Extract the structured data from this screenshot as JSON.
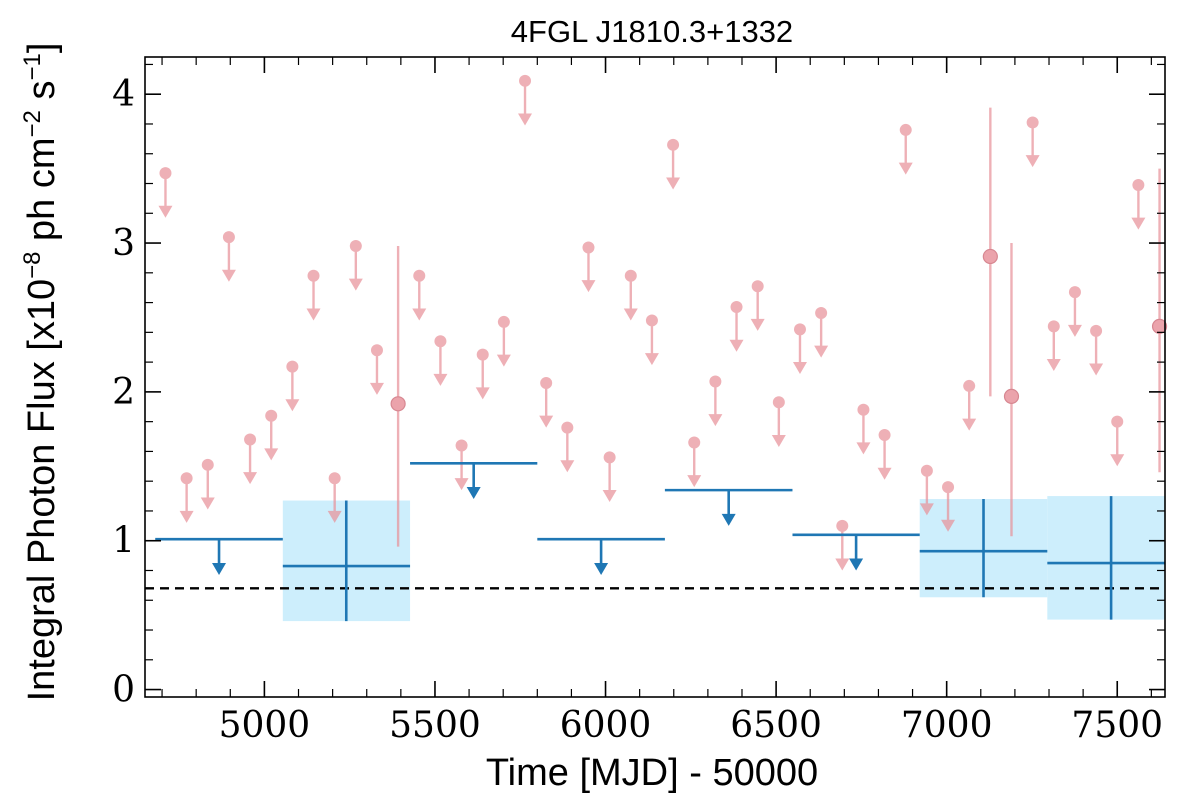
{
  "chart_data": {
    "type": "scatter",
    "title": "4FGL J1810.3+1332",
    "xlabel": "Time [MJD] - 50000",
    "ylabel": "Integral Photon Flux [x10$^{-8}$ ph cm$^{-2}$ s$^{-1}$]",
    "ylabel_parts": {
      "pre": "Integral Photon Flux [x10",
      "e1": "−8",
      "mid": " ph cm",
      "e2": "−2",
      "mid2": " s",
      "e3": "−1",
      "post": "]"
    },
    "xlim": [
      4650,
      7640
    ],
    "ylim": [
      -0.05,
      4.25
    ],
    "x_ticks": [
      5000,
      5500,
      6000,
      6500,
      7000,
      7500
    ],
    "x_tick_labels": [
      "5000",
      "5500",
      "6000",
      "6500",
      "7000",
      "7500"
    ],
    "y_ticks": [
      0,
      1,
      2,
      3,
      4
    ],
    "y_tick_labels": [
      "0",
      "1",
      "2",
      "3",
      "4"
    ],
    "grid": false,
    "colors": {
      "short_bins": "#e8939b",
      "long_bins": "#1f77b4",
      "long_bins_band": "#cdeefc",
      "reference_line": "#000000"
    },
    "reference_line": {
      "y": 0.68,
      "style": "dashed"
    },
    "short_bins": {
      "upper_limits": [
        {
          "x": 4710,
          "y": 3.47
        },
        {
          "x": 4772,
          "y": 1.42
        },
        {
          "x": 4834,
          "y": 1.51
        },
        {
          "x": 4896,
          "y": 3.04
        },
        {
          "x": 4958,
          "y": 1.68
        },
        {
          "x": 5020,
          "y": 1.84
        },
        {
          "x": 5082,
          "y": 2.17
        },
        {
          "x": 5144,
          "y": 2.78
        },
        {
          "x": 5206,
          "y": 1.42
        },
        {
          "x": 5268,
          "y": 2.98
        },
        {
          "x": 5330,
          "y": 2.28
        },
        {
          "x": 5454,
          "y": 2.78
        },
        {
          "x": 5516,
          "y": 2.34
        },
        {
          "x": 5578,
          "y": 1.64
        },
        {
          "x": 5640,
          "y": 2.25
        },
        {
          "x": 5702,
          "y": 2.47
        },
        {
          "x": 5764,
          "y": 4.09
        },
        {
          "x": 5826,
          "y": 2.06
        },
        {
          "x": 5888,
          "y": 1.76
        },
        {
          "x": 5950,
          "y": 2.97
        },
        {
          "x": 6012,
          "y": 1.56
        },
        {
          "x": 6074,
          "y": 2.78
        },
        {
          "x": 6136,
          "y": 2.48
        },
        {
          "x": 6198,
          "y": 3.66
        },
        {
          "x": 6260,
          "y": 1.66
        },
        {
          "x": 6322,
          "y": 2.07
        },
        {
          "x": 6384,
          "y": 2.57
        },
        {
          "x": 6446,
          "y": 2.71
        },
        {
          "x": 6508,
          "y": 1.93
        },
        {
          "x": 6570,
          "y": 2.42
        },
        {
          "x": 6632,
          "y": 2.53
        },
        {
          "x": 6694,
          "y": 1.1
        },
        {
          "x": 6756,
          "y": 1.88
        },
        {
          "x": 6818,
          "y": 1.71
        },
        {
          "x": 6880,
          "y": 3.76
        },
        {
          "x": 6942,
          "y": 1.47
        },
        {
          "x": 7004,
          "y": 1.36
        },
        {
          "x": 7066,
          "y": 2.04
        },
        {
          "x": 7252,
          "y": 3.81
        },
        {
          "x": 7314,
          "y": 2.44
        },
        {
          "x": 7376,
          "y": 2.67
        },
        {
          "x": 7438,
          "y": 2.41
        },
        {
          "x": 7500,
          "y": 1.8
        },
        {
          "x": 7562,
          "y": 3.39
        }
      ],
      "detections": [
        {
          "x": 5392,
          "y": 1.92,
          "y_low": 0.96,
          "y_high": 2.98
        },
        {
          "x": 7128,
          "y": 2.91,
          "y_low": 1.97,
          "y_high": 3.91
        },
        {
          "x": 7190,
          "y": 1.97,
          "y_low": 1.03,
          "y_high": 3.0
        },
        {
          "x": 7624,
          "y": 2.44,
          "y_low": 1.46,
          "y_high": 3.5
        }
      ]
    },
    "long_bins": {
      "upper_limits": [
        {
          "x_start": 4680,
          "x_end": 5054,
          "y": 1.01
        },
        {
          "x_start": 5800,
          "x_end": 6174,
          "y": 1.01
        },
        {
          "x_start": 5427,
          "x_end": 5800,
          "y": 1.52
        },
        {
          "x_start": 6174,
          "x_end": 6548,
          "y": 1.34
        },
        {
          "x_start": 6548,
          "x_end": 6921,
          "y": 1.04
        }
      ],
      "detections": [
        {
          "x_start": 5054,
          "x_end": 5427,
          "x": 5240,
          "y": 0.83,
          "y_low": 0.46,
          "y_high": 1.27
        },
        {
          "x_start": 6921,
          "x_end": 7295,
          "x": 7108,
          "y": 0.93,
          "y_low": 0.62,
          "y_high": 1.28
        },
        {
          "x_start": 7295,
          "x_end": 7669,
          "x": 7482,
          "y": 0.85,
          "y_low": 0.47,
          "y_high": 1.3
        }
      ]
    }
  }
}
